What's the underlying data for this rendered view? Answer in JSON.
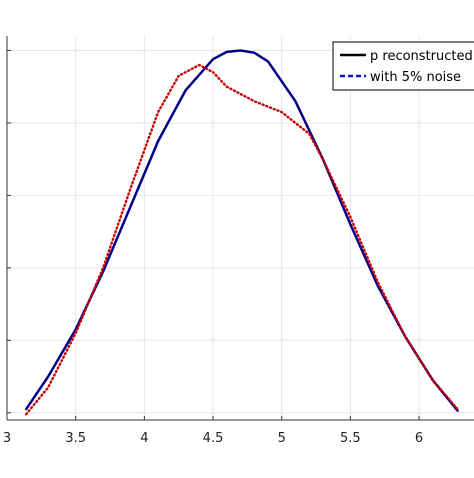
{
  "chart_data": {
    "type": "line",
    "title": "",
    "xlabel": "",
    "ylabel": "",
    "xlim": [
      3,
      6.4
    ],
    "ylim": [
      -0.1,
      5.2
    ],
    "xticks": [
      3,
      3.5,
      4,
      4.5,
      5,
      5.5,
      6
    ],
    "xtick_labels": [
      "3",
      "3.5",
      "4",
      "4.5",
      "5",
      "5.5",
      "6"
    ],
    "yticks": [
      0,
      1,
      2,
      3,
      4,
      5
    ],
    "ytick_labels": [
      "",
      "",
      "",
      "",
      "",
      ""
    ],
    "grid": true,
    "legend_position": "top-right",
    "series": [
      {
        "name": "p reconstructed",
        "color": "#00008b",
        "dash": "solid",
        "x": [
          3.14,
          3.3,
          3.5,
          3.7,
          3.9,
          4.1,
          4.3,
          4.5,
          4.6,
          4.7,
          4.8,
          4.9,
          5.1,
          5.3,
          5.5,
          5.7,
          5.9,
          6.1,
          6.28
        ],
        "y": [
          0.05,
          0.5,
          1.15,
          1.95,
          2.85,
          3.75,
          4.45,
          4.88,
          4.98,
          5.0,
          4.97,
          4.85,
          4.3,
          3.5,
          2.6,
          1.75,
          1.05,
          0.45,
          0.03
        ]
      },
      {
        "name": "with 5% noise",
        "color": "#cc0000",
        "dash": "dotted",
        "x": [
          3.14,
          3.3,
          3.5,
          3.7,
          3.9,
          4.1,
          4.25,
          4.4,
          4.5,
          4.6,
          4.8,
          5.0,
          5.2,
          5.3,
          5.5,
          5.7,
          5.9,
          6.1,
          6.28
        ],
        "y": [
          -0.02,
          0.35,
          1.1,
          2.0,
          3.1,
          4.15,
          4.65,
          4.8,
          4.7,
          4.5,
          4.3,
          4.15,
          3.85,
          3.5,
          2.7,
          1.8,
          1.05,
          0.45,
          0.05
        ]
      }
    ]
  },
  "legend": {
    "entries": [
      {
        "label": "p reconstructed",
        "color": "#000000",
        "dash": "solid"
      },
      {
        "label": "with 5% noise",
        "color": "#1010cc",
        "dash": "dashed"
      }
    ]
  }
}
